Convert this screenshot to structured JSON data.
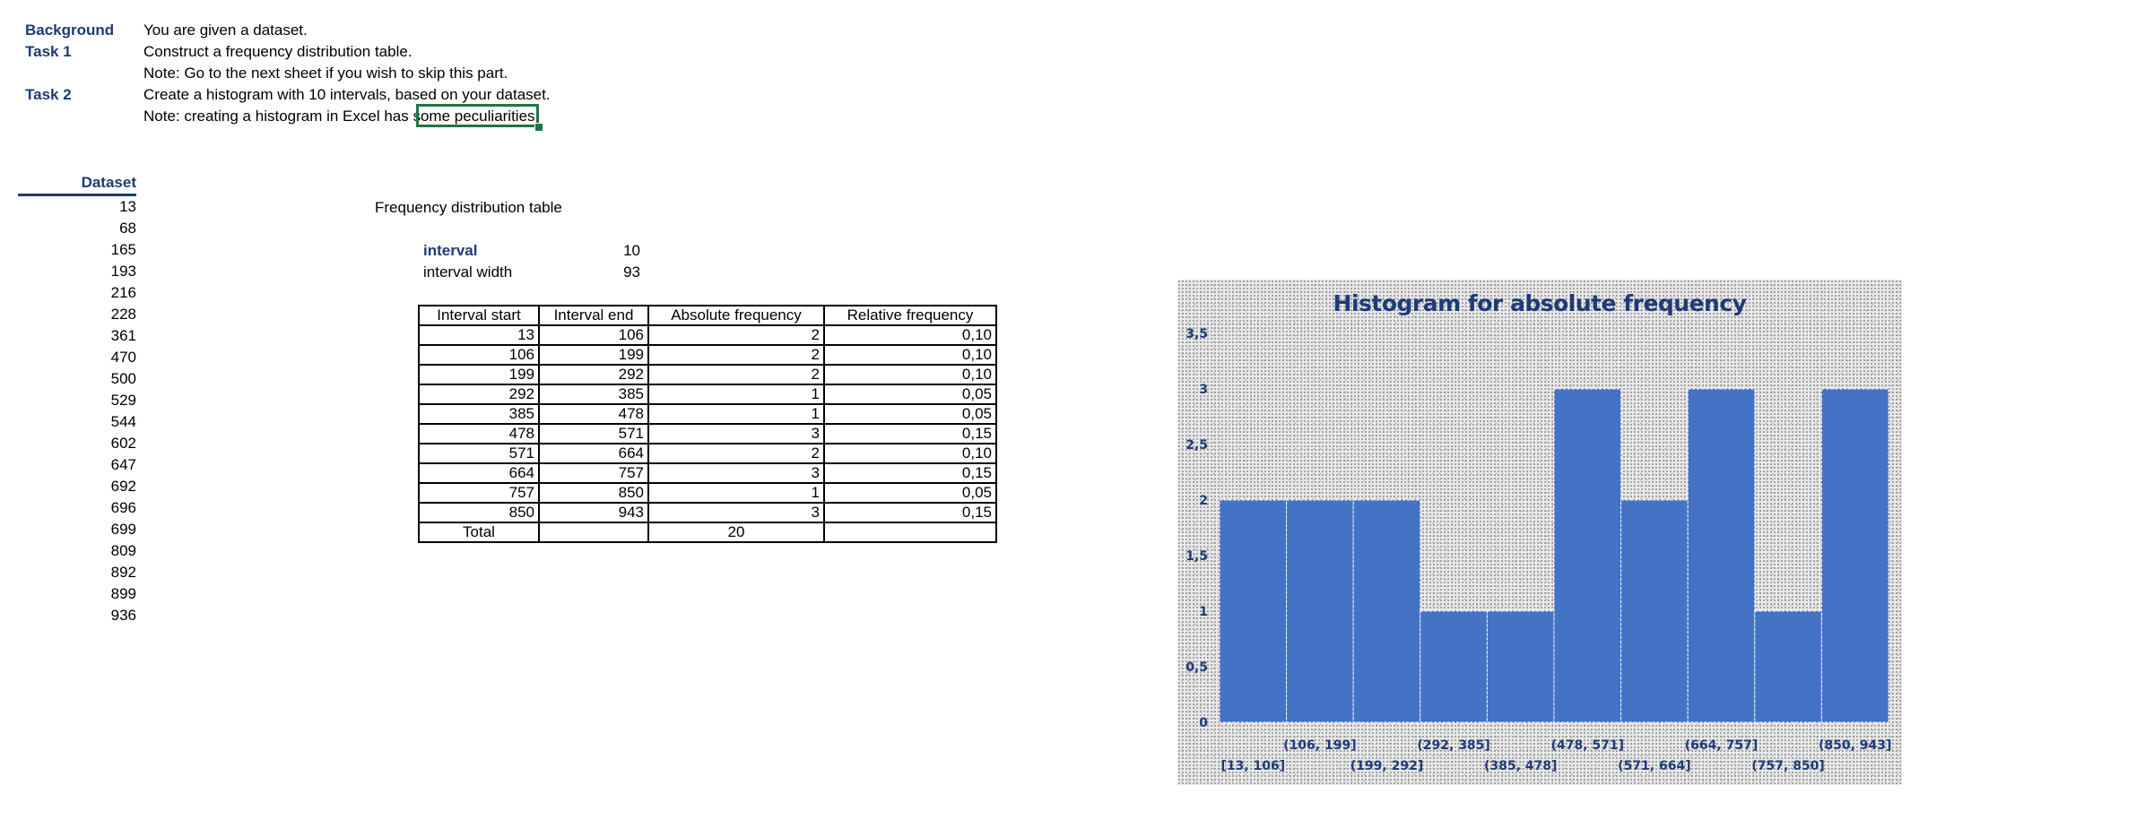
{
  "instructions": {
    "background_label": "Background",
    "background_text": "You are given a dataset.",
    "task1_label": "Task 1",
    "task1_text": "Construct a frequency distribution table.",
    "task1_note": "Note: Go to the next sheet if you wish to skip this part.",
    "task2_label": "Task 2",
    "task2_text": "Create a histogram with 10 intervals, based on your dataset.",
    "task2_note": "Note: creating a histogram in Excel has some peculiarities."
  },
  "dataset": {
    "header": "Dataset",
    "values": [
      "13",
      "68",
      "165",
      "193",
      "216",
      "228",
      "361",
      "470",
      "500",
      "529",
      "544",
      "602",
      "647",
      "692",
      "696",
      "699",
      "809",
      "892",
      "899",
      "936"
    ]
  },
  "freq": {
    "title": "Frequency distribution table",
    "interval_label": "interval",
    "interval_value": "10",
    "width_label": "interval width",
    "width_value": "93",
    "headers": [
      "Interval start",
      "Interval end",
      "Absolute  frequency",
      "Relative frequency"
    ],
    "rows": [
      [
        "13",
        "106",
        "2",
        "0,10"
      ],
      [
        "106",
        "199",
        "2",
        "0,10"
      ],
      [
        "199",
        "292",
        "2",
        "0,10"
      ],
      [
        "292",
        "385",
        "1",
        "0,05"
      ],
      [
        "385",
        "478",
        "1",
        "0,05"
      ],
      [
        "478",
        "571",
        "3",
        "0,15"
      ],
      [
        "571",
        "664",
        "2",
        "0,10"
      ],
      [
        "664",
        "757",
        "3",
        "0,15"
      ],
      [
        "757",
        "850",
        "1",
        "0,05"
      ],
      [
        "850",
        "943",
        "3",
        "0,15"
      ]
    ],
    "total_label": "Total",
    "total_value": "20"
  },
  "chart_data": {
    "type": "bar",
    "title": "Histogram for absolute frequency",
    "categories": [
      "[13, 106]",
      "(106, 199]",
      "(199, 292]",
      "(292, 385]",
      "(385, 478]",
      "(478, 571]",
      "(571, 664]",
      "(664, 757]",
      "(757, 850]",
      "(850, 943]"
    ],
    "values": [
      2,
      2,
      2,
      1,
      1,
      3,
      2,
      3,
      1,
      3
    ],
    "yticks": [
      "0",
      "0,5",
      "1",
      "1,5",
      "2",
      "2,5",
      "3",
      "3,5"
    ],
    "ylim": [
      0,
      3.5
    ],
    "bar_color": "#4472c4",
    "grid": false,
    "legend": "none"
  },
  "colors": {
    "accent": "#1f3a78",
    "selection": "#217346"
  }
}
